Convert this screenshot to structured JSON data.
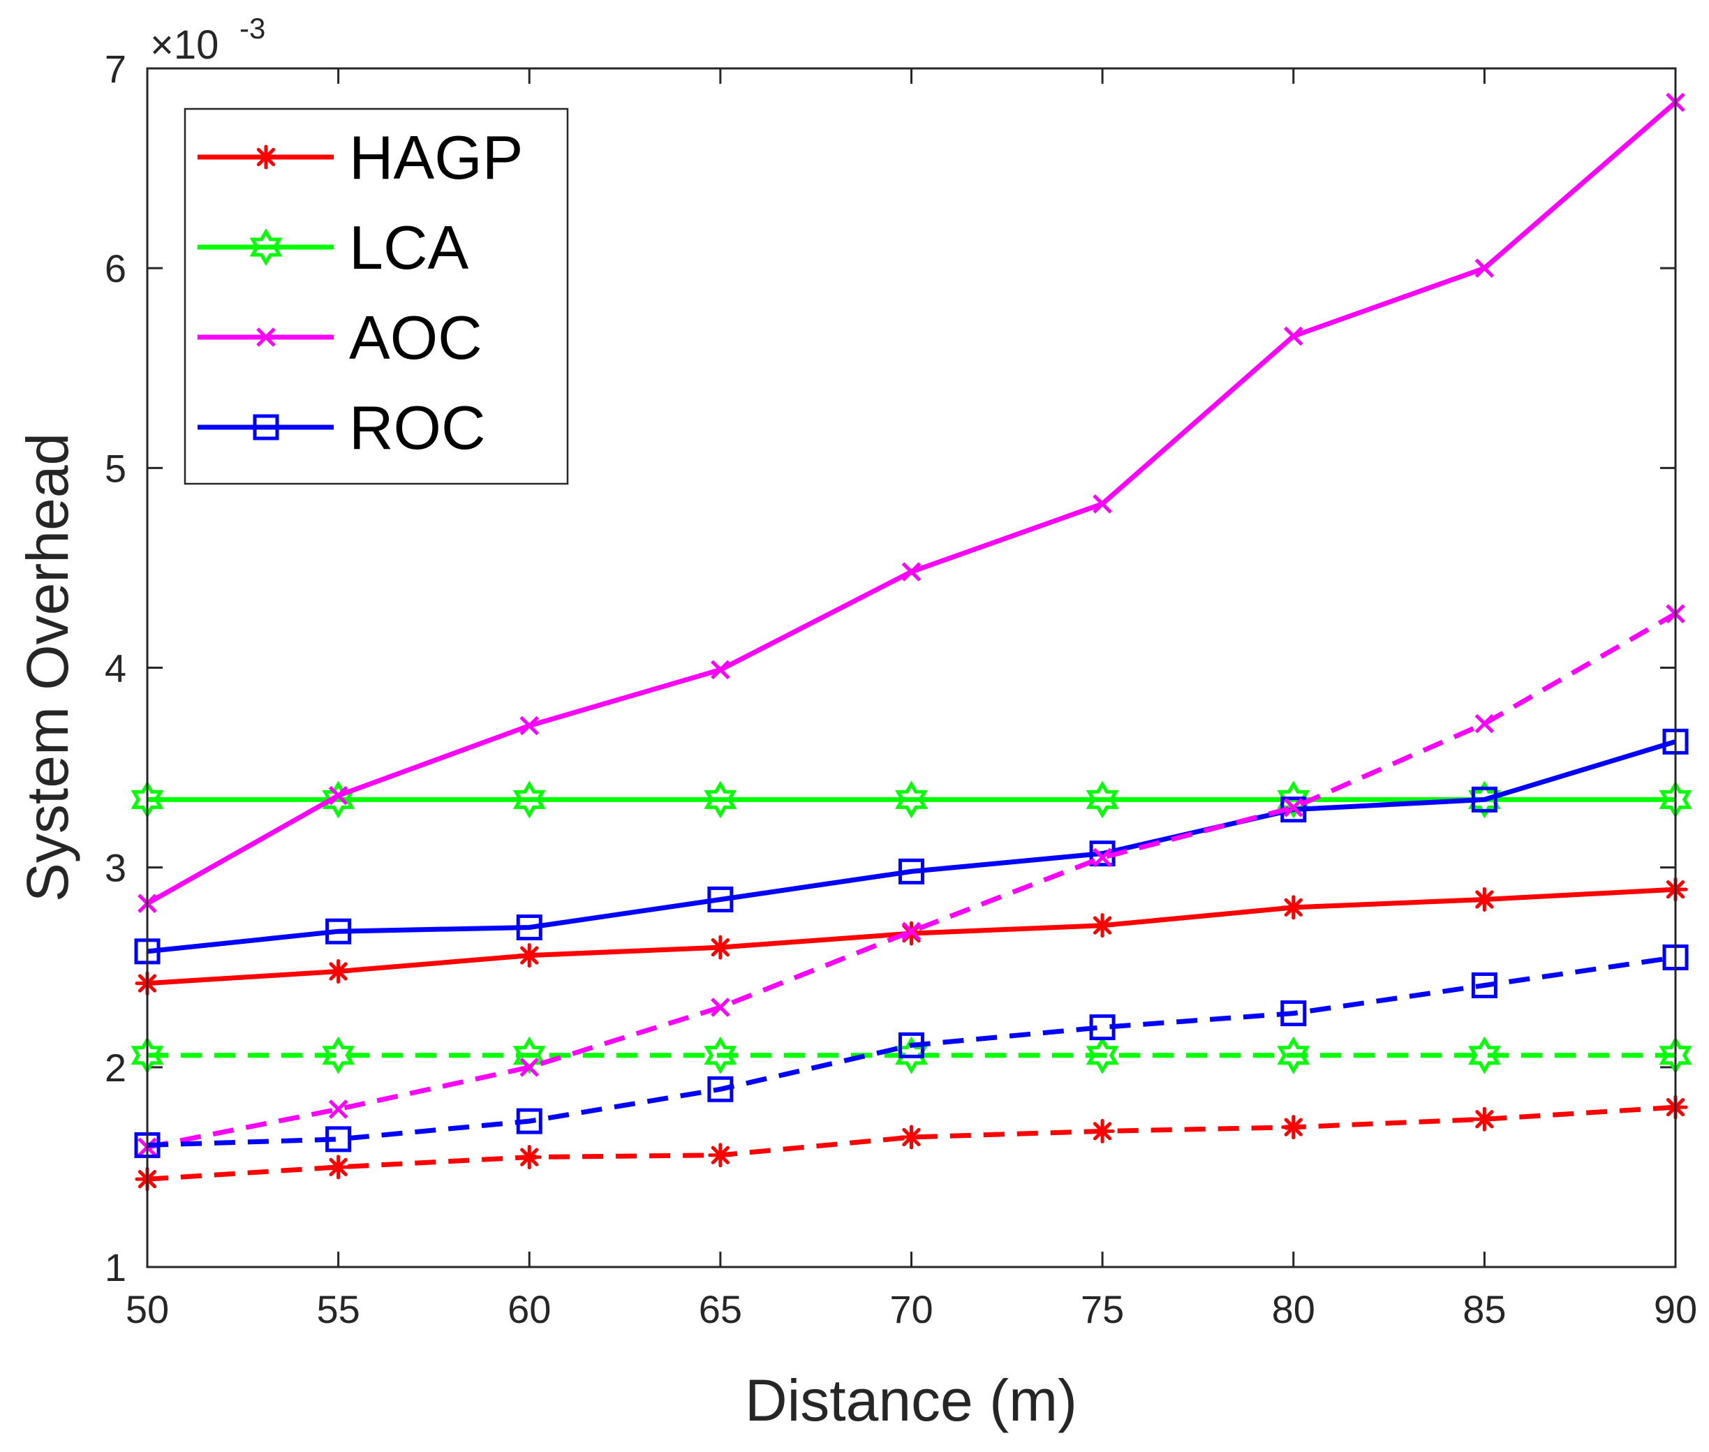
{
  "chart_data": {
    "type": "line",
    "title": "",
    "xlabel": "Distance (m)",
    "ylabel": "System Overhead",
    "exponent": {
      "base": "×10",
      "power": "-3"
    },
    "x": [
      50,
      55,
      60,
      65,
      70,
      75,
      80,
      85,
      90
    ],
    "xlim": [
      50,
      90
    ],
    "ylim": [
      1,
      7
    ],
    "xticks": [
      "50",
      "55",
      "60",
      "65",
      "70",
      "75",
      "80",
      "85",
      "90"
    ],
    "yticks": [
      "1",
      "2",
      "3",
      "4",
      "5",
      "6",
      "7"
    ],
    "grid": false,
    "legend_position": "top-left",
    "series": [
      {
        "name": "HAGP",
        "legend": true,
        "color": "#ff0000",
        "marker": "asterisk",
        "dash": "solid",
        "values": [
          2.42,
          2.48,
          2.56,
          2.6,
          2.67,
          2.71,
          2.8,
          2.84,
          2.89
        ]
      },
      {
        "name": "LCA",
        "legend": true,
        "color": "#00ff00",
        "marker": "hexagram",
        "dash": "solid",
        "values": [
          3.34,
          3.34,
          3.34,
          3.34,
          3.34,
          3.34,
          3.34,
          3.34,
          3.34
        ]
      },
      {
        "name": "AOC",
        "legend": true,
        "color": "#ff00ff",
        "marker": "x",
        "dash": "solid",
        "values": [
          2.82,
          3.36,
          3.71,
          3.99,
          4.48,
          4.82,
          5.66,
          6.0,
          6.83
        ]
      },
      {
        "name": "ROC",
        "legend": true,
        "color": "#0000ff",
        "marker": "square",
        "dash": "solid",
        "values": [
          2.58,
          2.68,
          2.7,
          2.84,
          2.98,
          3.07,
          3.29,
          3.34,
          3.63
        ]
      },
      {
        "name": "HAGP (dashed)",
        "legend": false,
        "color": "#ff0000",
        "marker": "asterisk",
        "dash": "dashed",
        "values": [
          1.44,
          1.5,
          1.55,
          1.56,
          1.65,
          1.68,
          1.7,
          1.74,
          1.8
        ]
      },
      {
        "name": "LCA (dashed)",
        "legend": false,
        "color": "#00ff00",
        "marker": "hexagram",
        "dash": "dashed",
        "values": [
          2.06,
          2.06,
          2.06,
          2.06,
          2.06,
          2.06,
          2.06,
          2.06,
          2.06
        ]
      },
      {
        "name": "AOC (dashed)",
        "legend": false,
        "color": "#ff00ff",
        "marker": "x",
        "dash": "dashed",
        "values": [
          1.6,
          1.79,
          2.0,
          2.3,
          2.68,
          3.05,
          3.3,
          3.72,
          4.27
        ]
      },
      {
        "name": "ROC (dashed)",
        "legend": false,
        "color": "#0000ff",
        "marker": "square",
        "dash": "dashed",
        "values": [
          1.61,
          1.64,
          1.73,
          1.89,
          2.11,
          2.2,
          2.27,
          2.41,
          2.55
        ]
      }
    ]
  }
}
